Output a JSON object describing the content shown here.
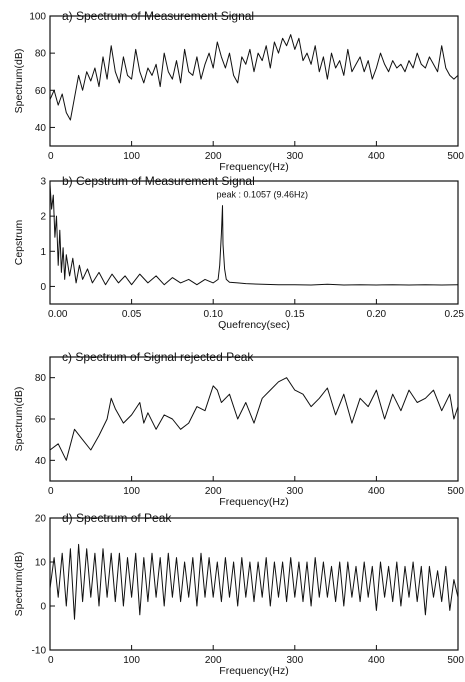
{
  "chart_data": [
    {
      "id": "a",
      "type": "line",
      "title": "a) Spectrum of Measurement Signal",
      "xlabel": "Frequency(Hz)",
      "ylabel": "Spectrum(dB)",
      "xlim": [
        0,
        500
      ],
      "ylim": [
        30,
        100
      ],
      "xticks": [
        0,
        100,
        200,
        300,
        400,
        500
      ],
      "yticks": [
        40,
        60,
        80,
        100
      ],
      "grid": false,
      "series": [
        {
          "x": [
            0,
            5,
            10,
            15,
            20,
            25,
            30,
            35,
            40,
            45,
            50,
            55,
            60,
            65,
            70,
            75,
            80,
            85,
            90,
            95,
            100,
            105,
            110,
            115,
            120,
            125,
            130,
            135,
            140,
            145,
            150,
            155,
            160,
            165,
            170,
            175,
            180,
            185,
            190,
            195,
            200,
            205,
            210,
            215,
            220,
            225,
            230,
            235,
            240,
            245,
            250,
            255,
            260,
            265,
            270,
            275,
            280,
            285,
            290,
            295,
            300,
            305,
            310,
            315,
            320,
            325,
            330,
            335,
            340,
            345,
            350,
            355,
            360,
            365,
            370,
            375,
            380,
            385,
            390,
            395,
            400,
            405,
            410,
            415,
            420,
            425,
            430,
            435,
            440,
            445,
            450,
            455,
            460,
            465,
            470,
            475,
            480,
            485,
            490,
            495,
            500
          ],
          "y": [
            55,
            60,
            52,
            58,
            48,
            44,
            56,
            68,
            60,
            70,
            65,
            72,
            62,
            78,
            66,
            84,
            70,
            64,
            78,
            68,
            66,
            82,
            70,
            64,
            72,
            68,
            74,
            62,
            80,
            70,
            66,
            76,
            64,
            82,
            70,
            68,
            78,
            66,
            74,
            80,
            72,
            86,
            78,
            72,
            80,
            68,
            64,
            78,
            74,
            82,
            70,
            80,
            76,
            84,
            72,
            86,
            80,
            88,
            84,
            90,
            82,
            88,
            76,
            80,
            74,
            84,
            70,
            78,
            66,
            80,
            72,
            76,
            68,
            82,
            70,
            74,
            78,
            70,
            76,
            66,
            72,
            80,
            74,
            70,
            76,
            72,
            74,
            70,
            76,
            72,
            80,
            74,
            72,
            78,
            74,
            70,
            84,
            72,
            68,
            66,
            68
          ]
        }
      ]
    },
    {
      "id": "b",
      "type": "line",
      "title": "b) Cepstrum of Measurement Signal",
      "xlabel": "Quefrency(sec)",
      "ylabel": "Cepstrum",
      "xlim": [
        0,
        0.25
      ],
      "ylim": [
        -0.5,
        3
      ],
      "xticks": [
        "0.00",
        "0.05",
        "0.10",
        "0.15",
        "0.20",
        "0.25"
      ],
      "yticks": [
        0,
        1,
        2,
        3
      ],
      "grid": false,
      "annotation": {
        "text": "peak : 0.1057 (9.46Hz)",
        "x": 0.1057,
        "y": 2.3
      },
      "series": [
        {
          "x": [
            0,
            0.001,
            0.002,
            0.003,
            0.004,
            0.005,
            0.006,
            0.007,
            0.008,
            0.009,
            0.01,
            0.012,
            0.014,
            0.016,
            0.018,
            0.02,
            0.023,
            0.026,
            0.03,
            0.034,
            0.038,
            0.042,
            0.046,
            0.05,
            0.055,
            0.06,
            0.065,
            0.07,
            0.075,
            0.08,
            0.085,
            0.09,
            0.095,
            0.1,
            0.103,
            0.104,
            0.105,
            0.1057,
            0.106,
            0.107,
            0.108,
            0.11,
            0.115,
            0.12,
            0.13,
            0.14,
            0.15,
            0.16,
            0.17,
            0.18,
            0.19,
            0.2,
            0.21,
            0.22,
            0.23,
            0.24,
            0.25
          ],
          "y": [
            2.9,
            2.2,
            2.6,
            1.4,
            2.0,
            0.6,
            1.6,
            0.4,
            1.1,
            0.2,
            0.9,
            0.3,
            0.8,
            0.1,
            0.6,
            0.2,
            0.5,
            0.1,
            0.4,
            0.05,
            0.35,
            0.1,
            0.3,
            0.05,
            0.35,
            0.1,
            0.3,
            0.05,
            0.25,
            0.1,
            0.2,
            0.05,
            0.2,
            0.1,
            0.2,
            0.6,
            1.5,
            2.3,
            1.2,
            0.5,
            0.2,
            0.12,
            0.1,
            0.08,
            0.06,
            0.05,
            0.05,
            0.04,
            0.06,
            0.04,
            0.05,
            0.04,
            0.05,
            0.04,
            0.05,
            0.04,
            0.05
          ]
        }
      ]
    },
    {
      "id": "c",
      "type": "line",
      "title": "c) Spectrum of Signal rejected Peak",
      "xlabel": "Frequency(Hz)",
      "ylabel": "Spectrum(dB)",
      "xlim": [
        0,
        500
      ],
      "ylim": [
        30,
        90
      ],
      "xticks": [
        0,
        100,
        200,
        300,
        400,
        500
      ],
      "yticks": [
        40,
        60,
        80
      ],
      "grid": false,
      "series": [
        {
          "x": [
            0,
            10,
            20,
            30,
            40,
            50,
            60,
            70,
            75,
            80,
            90,
            100,
            110,
            115,
            120,
            130,
            140,
            150,
            160,
            170,
            180,
            190,
            200,
            205,
            210,
            220,
            230,
            240,
            250,
            260,
            270,
            280,
            290,
            300,
            310,
            320,
            330,
            340,
            350,
            360,
            370,
            380,
            390,
            400,
            410,
            420,
            430,
            440,
            450,
            460,
            470,
            480,
            490,
            495,
            500
          ],
          "y": [
            45,
            48,
            40,
            55,
            50,
            45,
            52,
            60,
            70,
            65,
            58,
            62,
            68,
            58,
            63,
            55,
            62,
            60,
            55,
            58,
            66,
            64,
            76,
            74,
            68,
            72,
            60,
            68,
            58,
            70,
            74,
            78,
            80,
            74,
            72,
            66,
            70,
            75,
            62,
            72,
            58,
            70,
            66,
            74,
            60,
            72,
            64,
            74,
            68,
            70,
            74,
            64,
            72,
            60,
            66
          ]
        }
      ]
    },
    {
      "id": "d",
      "type": "line",
      "title": "d) Spectrum of Peak",
      "xlabel": "Frequency(Hz)",
      "ylabel": "Spectrum(dB)",
      "xlim": [
        0,
        500
      ],
      "ylim": [
        -10,
        20
      ],
      "xticks": [
        0,
        100,
        200,
        300,
        400,
        500
      ],
      "yticks": [
        -10,
        0,
        10,
        20
      ],
      "grid": false,
      "series": [
        {
          "x": [
            0,
            5,
            10,
            15,
            20,
            25,
            30,
            35,
            40,
            45,
            50,
            55,
            60,
            65,
            70,
            75,
            80,
            85,
            90,
            95,
            100,
            105,
            110,
            115,
            120,
            125,
            130,
            135,
            140,
            145,
            150,
            155,
            160,
            165,
            170,
            175,
            180,
            185,
            190,
            195,
            200,
            205,
            210,
            215,
            220,
            225,
            230,
            235,
            240,
            245,
            250,
            255,
            260,
            265,
            270,
            275,
            280,
            285,
            290,
            295,
            300,
            305,
            310,
            315,
            320,
            325,
            330,
            335,
            340,
            345,
            350,
            355,
            360,
            365,
            370,
            375,
            380,
            385,
            390,
            395,
            400,
            405,
            410,
            415,
            420,
            425,
            430,
            435,
            440,
            445,
            450,
            455,
            460,
            465,
            470,
            475,
            480,
            485,
            490,
            495,
            500
          ],
          "y": [
            4,
            11,
            2,
            12,
            0,
            13,
            -3,
            14,
            1,
            13,
            2,
            12,
            0,
            13,
            2,
            12,
            1,
            12,
            0,
            11,
            2,
            12,
            -2,
            11,
            1,
            12,
            2,
            11,
            0,
            12,
            2,
            11,
            1,
            10,
            2,
            11,
            0,
            12,
            2,
            11,
            2,
            10,
            1,
            11,
            2,
            10,
            0,
            11,
            2,
            10,
            1,
            10,
            2,
            11,
            0,
            10,
            2,
            10,
            1,
            11,
            2,
            10,
            1,
            10,
            0,
            11,
            2,
            10,
            2,
            9,
            1,
            10,
            0,
            10,
            2,
            9,
            1,
            10,
            2,
            9,
            -1,
            10,
            2,
            9,
            1,
            10,
            0,
            9,
            2,
            10,
            1,
            9,
            -2,
            9,
            2,
            8,
            1,
            9,
            -1,
            6,
            2
          ]
        }
      ]
    }
  ]
}
